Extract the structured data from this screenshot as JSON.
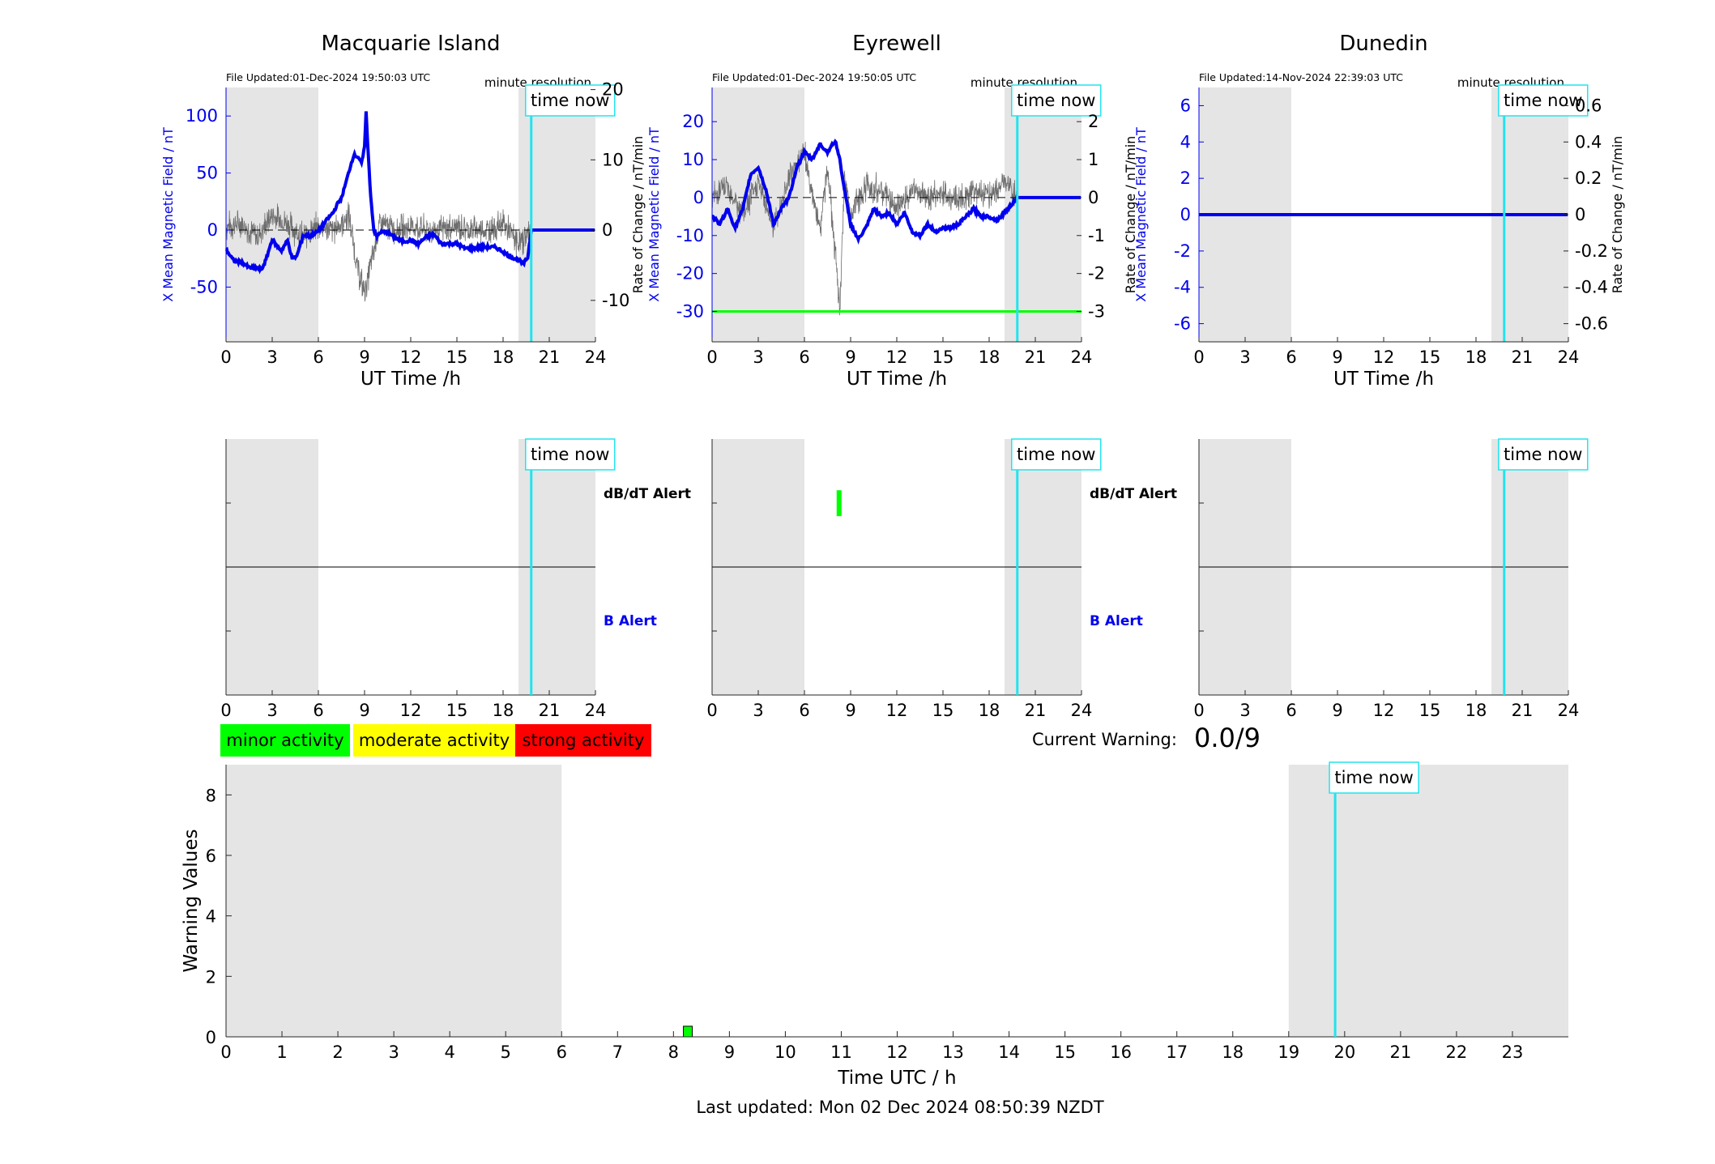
{
  "colors": {
    "shade": "#e5e5e5",
    "field_line": "#0000ee",
    "rate_line": "#6e6e6e",
    "time_now": "#22e4ee",
    "minor": "#00ff00",
    "moderate": "#ffff00",
    "strong": "#ff0000",
    "axis": "#262626"
  },
  "common": {
    "xlabel": "UT Time /h",
    "xticks": [
      0,
      3,
      6,
      9,
      12,
      15,
      18,
      21,
      24
    ],
    "time_now_label": "time now",
    "time_now_hour": 19.83,
    "minute_resolution_label": "minute resolution",
    "night_shade": [
      [
        0,
        6
      ],
      [
        19,
        24
      ]
    ],
    "dbdt_alert_label": "dB/dT Alert",
    "b_alert_label": "B Alert"
  },
  "stations": [
    {
      "id": "macquarie",
      "title": "Macquarie Island",
      "file_updated": "File Updated:01-Dec-2024 19:50:03 UTC",
      "ylabel_left": "X Mean Magnetic Field / nT",
      "ylabel_right": "",
      "yticks_left": [
        -50,
        0,
        50,
        100
      ],
      "yticks_right": [
        -10,
        0,
        10,
        20
      ],
      "ylim_left": [
        -98,
        125
      ],
      "ylim_right": [
        -15.9,
        20.3
      ],
      "field_dash_level": 0,
      "alert_bar_level": null,
      "dbdt_alerts": []
    },
    {
      "id": "eyrewell",
      "title": "Eyrewell",
      "file_updated": "File Updated:01-Dec-2024 19:50:05 UTC",
      "ylabel_left": "X Mean Magnetic Field / nT",
      "ylabel_right": "Rate of Change / nT/min",
      "ylabel_left_outer": "Rate of Change / nT/min",
      "yticks_left": [
        -30,
        -20,
        -10,
        0,
        10,
        20
      ],
      "yticks_right": [
        -3,
        -2,
        -1,
        0,
        1,
        2
      ],
      "ylim_left": [
        -38,
        29
      ],
      "ylim_right": [
        -3.8,
        2.9
      ],
      "field_dash_level": 0,
      "alert_bar_level": -30,
      "dbdt_alerts": [
        {
          "hour": 8.25,
          "level": 1
        }
      ]
    },
    {
      "id": "dunedin",
      "title": "Dunedin",
      "file_updated": "File Updated:14-Nov-2024 22:39:03 UTC",
      "ylabel_left": "X Mean Magnetic Field / nT",
      "ylabel_right": "Rate of Change / nT/min",
      "yticks_left": [
        -6,
        -4,
        -2,
        0,
        2,
        4,
        6
      ],
      "yticks_right": [
        -0.6,
        -0.4,
        -0.2,
        0,
        0.2,
        0.4,
        0.6
      ],
      "ylim_left": [
        -7,
        7
      ],
      "ylim_right": [
        -0.7,
        0.7
      ],
      "field_dash_level": 0,
      "alert_bar_level": null,
      "dbdt_alerts": []
    }
  ],
  "legend": {
    "minor": "minor activity",
    "moderate": "moderate activity",
    "strong": "strong activity"
  },
  "current_warning": {
    "label": "Current Warning:",
    "value": "0.0/9"
  },
  "warning_chart": {
    "ylabel": "Warning Values",
    "xlabel": "Time UTC / h",
    "yticks": [
      0,
      2,
      4,
      6,
      8
    ],
    "ylim": [
      0,
      9
    ],
    "xlim": [
      0,
      24
    ],
    "xticks": [
      0,
      1,
      2,
      3,
      4,
      5,
      6,
      7,
      8,
      9,
      10,
      11,
      12,
      13,
      14,
      15,
      16,
      17,
      18,
      19,
      20,
      21,
      22,
      23
    ],
    "night_shade": [
      [
        0,
        6
      ],
      [
        19,
        24
      ]
    ],
    "bars": [
      {
        "hour": 8.25,
        "value": 0.35
      }
    ]
  },
  "footer": "Last updated: Mon 02 Dec 2024 08:50:39 NZDT",
  "chart_data": [
    {
      "type": "line",
      "title": "Macquarie Island",
      "xlabel": "UT Time /h",
      "ylabel": "X Mean Magnetic Field / nT",
      "xlim": [
        0,
        24
      ],
      "ylim": [
        -98,
        125
      ],
      "series": [
        {
          "name": "X Mean Magnetic Field / nT",
          "x": [
            0,
            0.5,
            1,
            1.5,
            2,
            2.3,
            2.6,
            3,
            3.3,
            3.6,
            4,
            4.3,
            4.6,
            5,
            5.5,
            6,
            6.5,
            7,
            7.2,
            7.5,
            7.8,
            8,
            8.3,
            8.6,
            8.8,
            9,
            9.1,
            9.2,
            9.4,
            9.6,
            9.8,
            10,
            10.5,
            11,
            11.5,
            12,
            12.5,
            13,
            13.5,
            14,
            14.5,
            15,
            15.5,
            16,
            16.5,
            17,
            17.5,
            18,
            18.3,
            18.6,
            19,
            19.3,
            19.6,
            19.83,
            20.5,
            24
          ],
          "y": [
            -17,
            -27,
            -28,
            -33,
            -33,
            -35,
            -26,
            -8,
            -14,
            -18,
            -9,
            -25,
            -23,
            -5,
            -5,
            -1,
            8,
            16,
            22,
            28,
            42,
            52,
            66,
            64,
            58,
            72,
            105,
            76,
            30,
            0,
            -6,
            -2,
            -2,
            -7,
            -10,
            -9,
            -12,
            -6,
            -4,
            -12,
            -12,
            -12,
            -16,
            -16,
            -15,
            -15,
            -15,
            -19,
            -22,
            -24,
            -26,
            -30,
            -24,
            0,
            0,
            0
          ]
        },
        {
          "name": "Rate of Change / nT/min",
          "x": [
            0,
            1,
            2,
            3,
            4,
            5,
            6,
            7,
            8,
            8.5,
            9,
            9.3,
            9.6,
            10,
            11,
            12,
            13,
            14,
            15,
            16,
            17,
            18,
            19,
            19.83
          ],
          "y": [
            0.5,
            1,
            -1,
            2,
            1,
            -1,
            0.5,
            0,
            2,
            -5,
            -9,
            -6,
            -3,
            1,
            0,
            0.5,
            0,
            0,
            0.5,
            0,
            0,
            1,
            -2,
            0
          ]
        }
      ],
      "y2lim": [
        -15.9,
        20.3
      ],
      "grid": false
    },
    {
      "type": "line",
      "title": "Eyrewell",
      "xlabel": "UT Time /h",
      "ylabel": "X Mean Magnetic Field / nT",
      "xlim": [
        0,
        24
      ],
      "ylim": [
        -38,
        29
      ],
      "series": [
        {
          "name": "X Mean Magnetic Field / nT",
          "x": [
            0,
            0.5,
            1,
            1.5,
            2,
            2.5,
            3,
            3.5,
            4,
            4.5,
            5,
            5.5,
            6,
            6.5,
            7,
            7.5,
            8,
            8.3,
            8.6,
            9,
            9.5,
            10,
            10.5,
            11,
            11.5,
            12,
            12.5,
            13,
            13.5,
            14,
            14.5,
            15,
            15.5,
            16,
            16.5,
            17,
            17.5,
            18,
            18.5,
            19,
            19.83,
            24
          ],
          "y": [
            -5,
            -7,
            -3,
            -8,
            -3,
            6,
            8,
            2,
            -7,
            -3,
            0,
            8,
            12,
            10,
            14,
            12,
            15,
            10,
            2,
            -7,
            -11,
            -8,
            -3,
            -5,
            -4,
            -7,
            -4,
            -9,
            -10,
            -7,
            -9,
            -8,
            -8,
            -7,
            -5,
            -3,
            -5,
            -5,
            -6,
            -4,
            0,
            0
          ]
        },
        {
          "name": "Rate of Change / nT/min",
          "x": [
            0,
            1,
            2,
            3,
            4,
            5,
            6,
            7,
            7.5,
            8,
            8.3,
            8.6,
            9,
            10,
            11,
            12,
            13,
            14,
            15,
            16,
            17,
            18,
            19,
            19.83
          ],
          "y": [
            0,
            0.3,
            -0.5,
            0.4,
            -0.8,
            0.5,
            1.2,
            -0.9,
            0.8,
            -1.5,
            -3,
            0.5,
            -0.4,
            0.3,
            0.2,
            -0.3,
            0.2,
            0,
            0.1,
            -0.1,
            0.2,
            0.1,
            0.4,
            0
          ]
        },
        {
          "name": "dB/dT Alert threshold",
          "x": [
            0,
            24
          ],
          "y": [
            -30,
            -30
          ]
        }
      ],
      "y2lim": [
        -3.8,
        2.9
      ],
      "grid": false
    },
    {
      "type": "line",
      "title": "Dunedin",
      "xlabel": "UT Time /h",
      "ylabel": "X Mean Magnetic Field / nT",
      "xlim": [
        0,
        24
      ],
      "ylim": [
        -7,
        7
      ],
      "series": [
        {
          "name": "X Mean Magnetic Field / nT",
          "x": [
            0,
            24
          ],
          "y": [
            0,
            0
          ]
        }
      ],
      "y2lim": [
        -0.7,
        0.7
      ],
      "grid": false
    },
    {
      "type": "bar",
      "title": "",
      "xlabel": "Time UTC / h",
      "ylabel": "Warning Values",
      "xlim": [
        0,
        24
      ],
      "ylim": [
        0,
        9
      ],
      "categories": [
        "8.25"
      ],
      "values": [
        0.35
      ],
      "grid": false
    }
  ]
}
